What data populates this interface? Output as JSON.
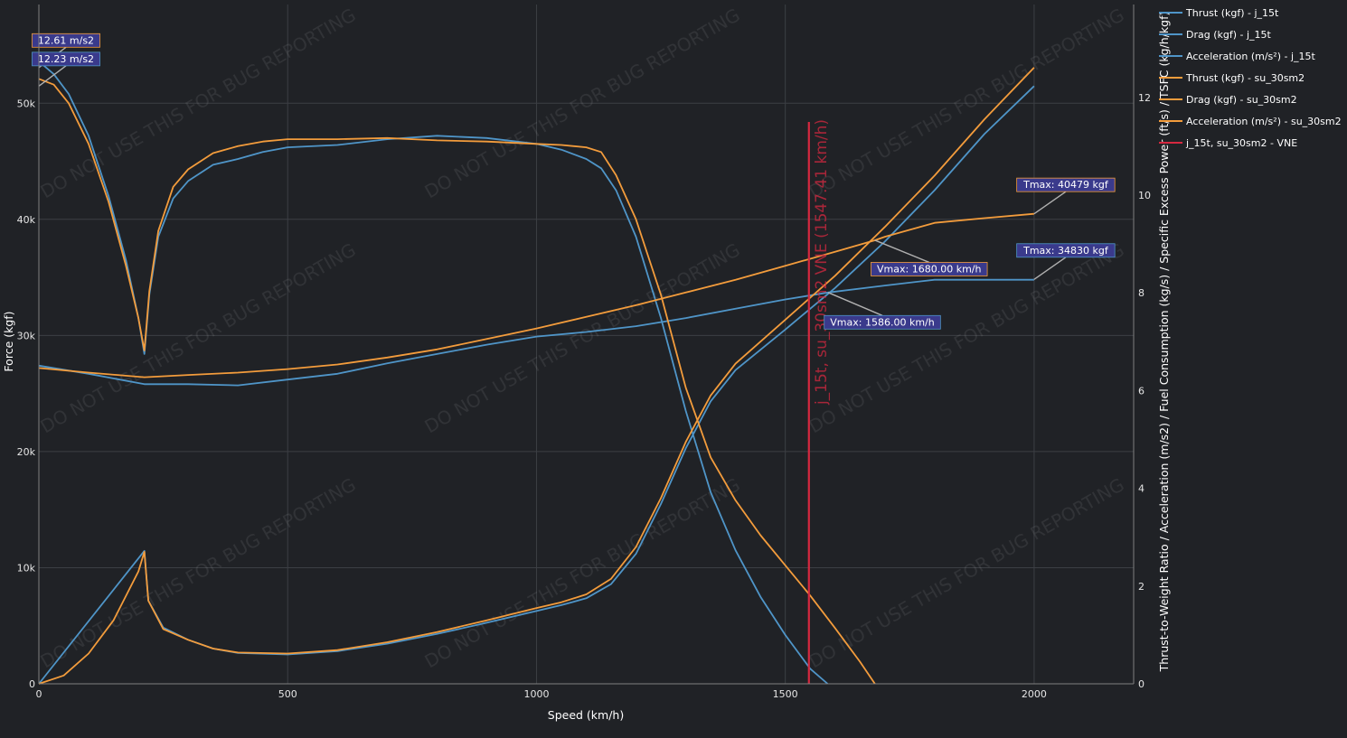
{
  "chart_data": {
    "type": "line",
    "xlabel": "Speed (km/h)",
    "ylabel": "Force (kgf)",
    "y2label": "Thrust-to-Weight Ratio / Acceleration (m/s2) / Fuel Consumption (kg/s) / Specific Excess Power (ft/s) / TSFC (kg/h/kgf)",
    "xlim": [
      0,
      2200
    ],
    "ylim": [
      0,
      58500
    ],
    "y2lim": [
      0,
      13.9
    ],
    "xticks": [
      0,
      500,
      1000,
      1500,
      2000
    ],
    "xtick_labels": [
      "0",
      "500",
      "1000",
      "1500",
      "2000"
    ],
    "yticks": [
      0,
      10000,
      20000,
      30000,
      40000,
      50000
    ],
    "ytick_labels": [
      "0",
      "10k",
      "20k",
      "30k",
      "40k",
      "50k"
    ],
    "y2ticks": [
      0,
      2,
      4,
      6,
      8,
      10,
      12
    ],
    "y2tick_labels": [
      "0",
      "2",
      "4",
      "6",
      "8",
      "10",
      "12"
    ],
    "watermark": "DO NOT USE THIS FOR BUG REPORTING",
    "series": [
      {
        "name": "Thrust (kgf) - j_15t",
        "color": "#4f95c8",
        "axis": "y",
        "points": [
          [
            0,
            27400
          ],
          [
            100,
            26700
          ],
          [
            212,
            25800
          ],
          [
            300,
            25800
          ],
          [
            400,
            25700
          ],
          [
            500,
            26200
          ],
          [
            600,
            26700
          ],
          [
            700,
            27600
          ],
          [
            800,
            28400
          ],
          [
            900,
            29200
          ],
          [
            1000,
            29900
          ],
          [
            1100,
            30300
          ],
          [
            1200,
            30800
          ],
          [
            1300,
            31500
          ],
          [
            1400,
            32300
          ],
          [
            1500,
            33100
          ],
          [
            1586,
            33700
          ],
          [
            1700,
            34300
          ],
          [
            1800,
            34800
          ],
          [
            1900,
            34800
          ],
          [
            2000,
            34800
          ]
        ]
      },
      {
        "name": "Drag (kgf) - j_15t",
        "color": "#4f95c8",
        "axis": "y",
        "points": [
          [
            0,
            53600
          ],
          [
            30,
            52500
          ],
          [
            60,
            50800
          ],
          [
            100,
            47200
          ],
          [
            140,
            42000
          ],
          [
            175,
            36500
          ],
          [
            200,
            31500
          ],
          [
            212,
            28400
          ],
          [
            222,
            33500
          ],
          [
            240,
            38500
          ],
          [
            270,
            41800
          ],
          [
            300,
            43300
          ],
          [
            350,
            44700
          ],
          [
            400,
            45200
          ],
          [
            450,
            45800
          ],
          [
            500,
            46200
          ],
          [
            600,
            46400
          ],
          [
            700,
            46900
          ],
          [
            800,
            47200
          ],
          [
            900,
            47000
          ],
          [
            1000,
            46500
          ],
          [
            1050,
            46000
          ],
          [
            1100,
            45200
          ],
          [
            1130,
            44400
          ],
          [
            1160,
            42500
          ],
          [
            1200,
            38500
          ],
          [
            1250,
            31500
          ],
          [
            1300,
            23500
          ],
          [
            1350,
            16500
          ],
          [
            1400,
            11500
          ],
          [
            1450,
            7500
          ],
          [
            1500,
            4200
          ],
          [
            1550,
            1300
          ],
          [
            1585,
            0
          ]
        ]
      },
      {
        "name": "Acceleration (m/s²) - j_15t",
        "color": "#4f95c8",
        "axis": "y2",
        "points": [
          [
            0,
            0
          ],
          [
            212,
            2.72
          ],
          [
            220,
            1.7
          ],
          [
            250,
            1.15
          ],
          [
            300,
            0.9
          ],
          [
            350,
            0.72
          ],
          [
            400,
            0.63
          ],
          [
            500,
            0.6
          ],
          [
            600,
            0.67
          ],
          [
            700,
            0.82
          ],
          [
            800,
            1.02
          ],
          [
            900,
            1.25
          ],
          [
            1000,
            1.49
          ],
          [
            1050,
            1.61
          ],
          [
            1100,
            1.75
          ],
          [
            1150,
            2.04
          ],
          [
            1200,
            2.66
          ],
          [
            1250,
            3.68
          ],
          [
            1300,
            4.82
          ],
          [
            1350,
            5.78
          ],
          [
            1400,
            6.42
          ],
          [
            1500,
            7.25
          ],
          [
            1600,
            8.1
          ],
          [
            1700,
            9.05
          ],
          [
            1800,
            10.1
          ],
          [
            1900,
            11.25
          ],
          [
            2000,
            12.23
          ]
        ]
      },
      {
        "name": "Thrust (kgf) - su_30sm2",
        "color": "#f39c3c",
        "axis": "y",
        "points": [
          [
            0,
            27200
          ],
          [
            100,
            26800
          ],
          [
            212,
            26400
          ],
          [
            300,
            26600
          ],
          [
            400,
            26800
          ],
          [
            500,
            27100
          ],
          [
            600,
            27500
          ],
          [
            700,
            28100
          ],
          [
            800,
            28800
          ],
          [
            900,
            29700
          ],
          [
            1000,
            30600
          ],
          [
            1100,
            31600
          ],
          [
            1200,
            32600
          ],
          [
            1300,
            33700
          ],
          [
            1400,
            34800
          ],
          [
            1500,
            36000
          ],
          [
            1600,
            37200
          ],
          [
            1680,
            38200
          ],
          [
            1700,
            38500
          ],
          [
            1800,
            39700
          ],
          [
            1900,
            40100
          ],
          [
            2000,
            40479
          ]
        ]
      },
      {
        "name": "Drag (kgf) - su_30sm2",
        "color": "#f39c3c",
        "axis": "y",
        "points": [
          [
            0,
            52100
          ],
          [
            30,
            51600
          ],
          [
            60,
            50000
          ],
          [
            100,
            46500
          ],
          [
            140,
            41500
          ],
          [
            175,
            36000
          ],
          [
            200,
            31500
          ],
          [
            212,
            28700
          ],
          [
            222,
            33800
          ],
          [
            240,
            39000
          ],
          [
            270,
            42800
          ],
          [
            300,
            44300
          ],
          [
            350,
            45700
          ],
          [
            400,
            46300
          ],
          [
            450,
            46700
          ],
          [
            500,
            46900
          ],
          [
            600,
            46900
          ],
          [
            700,
            47000
          ],
          [
            800,
            46800
          ],
          [
            900,
            46700
          ],
          [
            1000,
            46500
          ],
          [
            1050,
            46400
          ],
          [
            1100,
            46200
          ],
          [
            1130,
            45800
          ],
          [
            1160,
            43800
          ],
          [
            1200,
            40000
          ],
          [
            1250,
            33500
          ],
          [
            1300,
            25500
          ],
          [
            1350,
            19500
          ],
          [
            1400,
            15800
          ],
          [
            1450,
            12800
          ],
          [
            1500,
            10200
          ],
          [
            1550,
            7600
          ],
          [
            1600,
            4800
          ],
          [
            1650,
            1900
          ],
          [
            1680,
            0
          ]
        ]
      },
      {
        "name": "Acceleration (m/s²) - su_30sm2",
        "color": "#f39c3c",
        "axis": "y2",
        "points": [
          [
            0,
            0
          ],
          [
            50,
            0.17
          ],
          [
            100,
            0.62
          ],
          [
            150,
            1.3
          ],
          [
            200,
            2.3
          ],
          [
            212,
            2.7
          ],
          [
            220,
            1.7
          ],
          [
            250,
            1.12
          ],
          [
            300,
            0.9
          ],
          [
            350,
            0.72
          ],
          [
            400,
            0.64
          ],
          [
            500,
            0.62
          ],
          [
            600,
            0.69
          ],
          [
            700,
            0.85
          ],
          [
            800,
            1.06
          ],
          [
            900,
            1.3
          ],
          [
            1000,
            1.55
          ],
          [
            1050,
            1.67
          ],
          [
            1100,
            1.83
          ],
          [
            1150,
            2.15
          ],
          [
            1200,
            2.8
          ],
          [
            1250,
            3.8
          ],
          [
            1300,
            4.95
          ],
          [
            1350,
            5.9
          ],
          [
            1400,
            6.55
          ],
          [
            1500,
            7.45
          ],
          [
            1600,
            8.35
          ],
          [
            1700,
            9.35
          ],
          [
            1800,
            10.4
          ],
          [
            1900,
            11.55
          ],
          [
            2000,
            12.61
          ]
        ]
      },
      {
        "name": "j_15t, su_30sm2 - VNE",
        "color": "#d62840",
        "axis": "y",
        "vertical_x": 1547.41,
        "label": "j_15t, su_30sm2 VNE (1547.41 km/h)"
      }
    ],
    "annotations": [
      {
        "text": "12.61 m/s2",
        "x": 0,
        "y": 12.61,
        "axis": "y2",
        "color": "#f39c3c"
      },
      {
        "text": "12.23 m/s2",
        "x": 0,
        "y": 12.23,
        "axis": "y2",
        "color": "#4f95c8"
      },
      {
        "text": "Tmax: 40479 kgf",
        "x": 2000,
        "y": 40479,
        "axis": "y",
        "color": "#f39c3c"
      },
      {
        "text": "Tmax: 34830 kgf",
        "x": 2000,
        "y": 34830,
        "axis": "y",
        "color": "#4f95c8"
      },
      {
        "text": "Vmax: 1680.00 km/h",
        "x": 1680,
        "y": 38200,
        "axis": "y",
        "color": "#f39c3c"
      },
      {
        "text": "Vmax: 1586.00 km/h",
        "x": 1586,
        "y": 33700,
        "axis": "y",
        "color": "#4f95c8"
      }
    ]
  }
}
